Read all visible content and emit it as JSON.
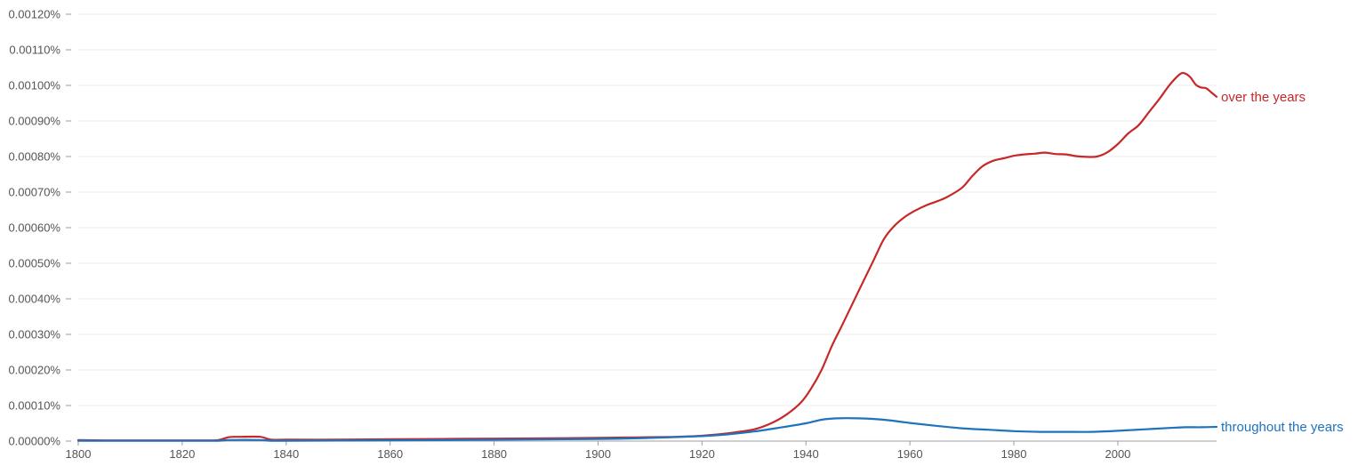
{
  "chart_data": {
    "type": "line",
    "title": "",
    "xlabel": "",
    "ylabel": "",
    "xlim": [
      1800,
      2019
    ],
    "ylim": [
      0,
      0.0012
    ],
    "y_unit": "%",
    "grid": true,
    "legend": "inline-right",
    "x_ticks": [
      "1800",
      "1820",
      "1840",
      "1860",
      "1880",
      "1900",
      "1920",
      "1940",
      "1960",
      "1980",
      "2000"
    ],
    "y_ticks": [
      "0.00000%",
      "0.00010%",
      "0.00020%",
      "0.00030%",
      "0.00040%",
      "0.00050%",
      "0.00060%",
      "0.00070%",
      "0.00080%",
      "0.00090%",
      "0.00100%",
      "0.00110%",
      "0.00120%"
    ],
    "series": [
      {
        "name": "over the years",
        "color": "#c62828",
        "x": [
          1800,
          1805,
          1810,
          1815,
          1820,
          1825,
          1827,
          1829,
          1831,
          1835,
          1837,
          1840,
          1850,
          1860,
          1870,
          1880,
          1890,
          1900,
          1905,
          1910,
          1915,
          1920,
          1925,
          1930,
          1933,
          1936,
          1939,
          1941,
          1943,
          1945,
          1947,
          1950,
          1953,
          1955,
          1957,
          1959,
          1961,
          1963,
          1965,
          1967,
          1970,
          1972,
          1974,
          1976,
          1978,
          1980,
          1982,
          1984,
          1986,
          1988,
          1990,
          1992,
          1994,
          1996,
          1998,
          2000,
          2002,
          2004,
          2006,
          2008,
          2010,
          2012,
          2013,
          2014,
          2015,
          2016,
          2017,
          2018,
          2019
        ],
        "values": [
          3e-06,
          2e-06,
          2e-06,
          2e-06,
          2e-06,
          2e-06,
          3e-06,
          1.1e-05,
          1.2e-05,
          1.2e-05,
          4e-06,
          4e-06,
          4e-06,
          5e-06,
          6e-06,
          7e-06,
          8e-06,
          9e-06,
          1e-05,
          1.1e-05,
          1.2e-05,
          1.5e-05,
          2.2e-05,
          3.3e-05,
          4.8e-05,
          7.2e-05,
          0.000108,
          0.000148,
          0.0002,
          0.000268,
          0.000327,
          0.000418,
          0.000508,
          0.000568,
          0.000605,
          0.00063,
          0.000648,
          0.000662,
          0.000673,
          0.000685,
          0.000712,
          0.000745,
          0.000773,
          0.000788,
          0.000795,
          0.000802,
          0.000806,
          0.000808,
          0.000811,
          0.000807,
          0.000806,
          0.000801,
          0.000799,
          0.0008,
          0.000812,
          0.000835,
          0.000865,
          0.000888,
          0.000925,
          0.000962,
          0.001002,
          0.001032,
          0.001033,
          0.001022,
          0.001002,
          0.000994,
          0.000992,
          0.00098,
          0.000968
        ]
      },
      {
        "name": "throughout the years",
        "color": "#1e73be",
        "x": [
          1800,
          1810,
          1820,
          1827,
          1829,
          1835,
          1837,
          1840,
          1860,
          1880,
          1900,
          1910,
          1920,
          1925,
          1930,
          1935,
          1940,
          1943,
          1946,
          1950,
          1955,
          1960,
          1965,
          1970,
          1975,
          1980,
          1985,
          1990,
          1995,
          2000,
          2005,
          2010,
          2013,
          2016,
          2019
        ],
        "values": [
          1e-06,
          1e-06,
          1e-06,
          1e-06,
          3e-06,
          3e-06,
          1e-06,
          1e-06,
          2e-06,
          4e-06,
          6e-06,
          9e-06,
          1.4e-05,
          1.9e-05,
          2.7e-05,
          3.8e-05,
          5e-05,
          6e-05,
          6.4e-05,
          6.4e-05,
          6e-05,
          5.1e-05,
          4.3e-05,
          3.6e-05,
          3.2e-05,
          2.8e-05,
          2.6e-05,
          2.6e-05,
          2.6e-05,
          2.9e-05,
          3.3e-05,
          3.7e-05,
          3.9e-05,
          3.9e-05,
          4e-05
        ]
      }
    ]
  }
}
